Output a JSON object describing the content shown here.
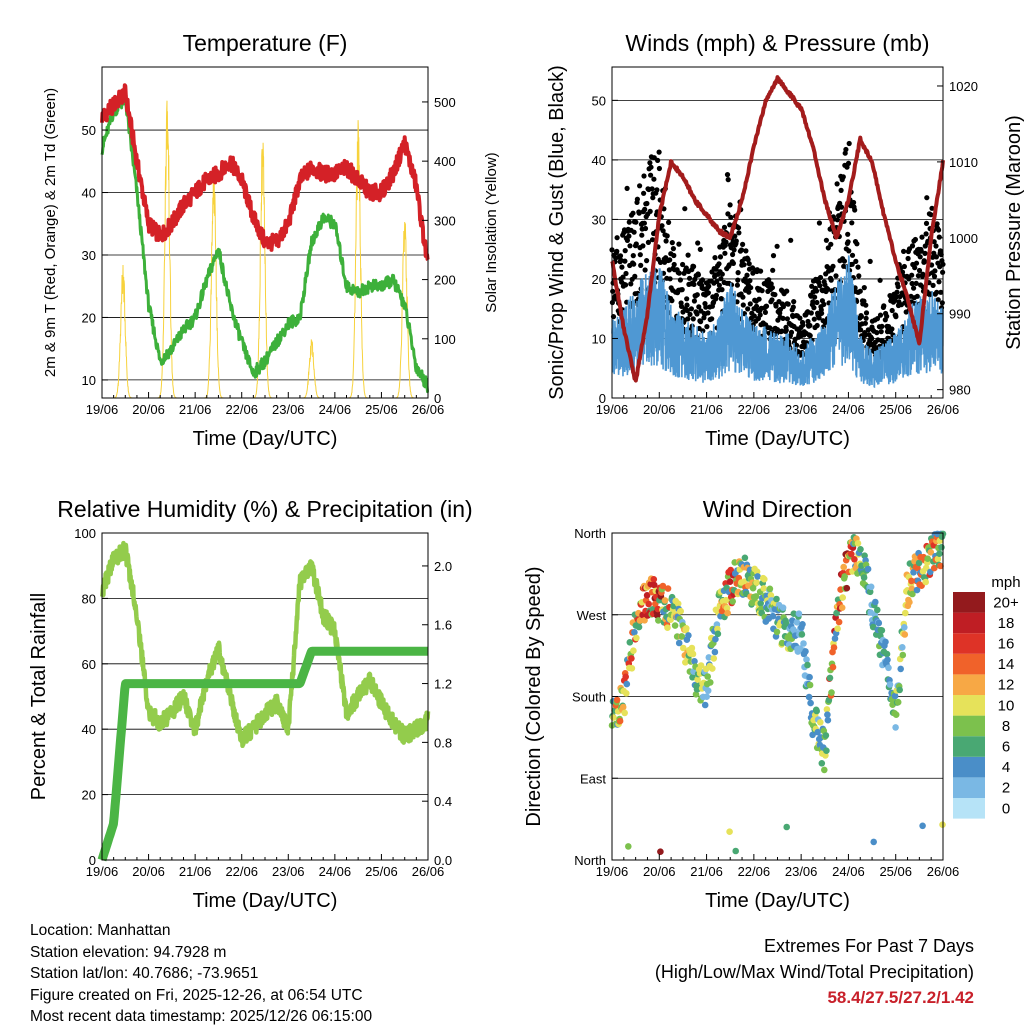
{
  "chart_data": [
    {
      "type": "line",
      "title": "Temperature (F)",
      "xlabel": "Time (Day/UTC)",
      "ylabel": "2m & 9m T (Red, Orange) & 2m Td (Green)",
      "ylabel_right": "Solar Insolation (Yellow)",
      "x_ticks": [
        "19/06",
        "20/06",
        "21/06",
        "22/06",
        "23/06",
        "24/06",
        "25/06",
        "26/06"
      ],
      "y_ticks": [
        10,
        20,
        30,
        40,
        50
      ],
      "y_ticks_right": [
        0,
        100,
        200,
        300,
        400,
        500
      ],
      "ylim": [
        7.1,
        60.1
      ],
      "ylim_right": [
        0,
        559
      ],
      "grid": true,
      "x_step_days": 0.25,
      "series": [
        {
          "name": "2m T",
          "color": "#d42127",
          "axis": "left",
          "values": [
            52,
            54,
            56,
            45,
            35,
            33,
            35,
            38,
            40,
            42,
            43,
            45,
            42,
            36,
            32,
            32,
            35,
            42,
            44,
            43,
            43,
            44,
            42,
            40,
            40,
            43,
            48,
            41,
            28
          ]
        },
        {
          "name": "2m Td",
          "color": "#3db03a",
          "axis": "left",
          "values": [
            47,
            53,
            55,
            40,
            22,
            13,
            15,
            18,
            20,
            26,
            31,
            22,
            16,
            11,
            13,
            16,
            19,
            20,
            32,
            36,
            35,
            25,
            24,
            25,
            25,
            26,
            22,
            12,
            9
          ]
        },
        {
          "name": "Solar Insolation",
          "color": "#f7d23c",
          "axis": "right",
          "peaks_day": [
            0.45,
            1.4,
            2.4,
            3.45,
            4.5,
            5.5,
            6.5
          ],
          "peaks_value": [
            230,
            530,
            410,
            460,
            100,
            470,
            320
          ]
        }
      ]
    },
    {
      "type": "scatter",
      "title": "Winds (mph) & Pressure (mb)",
      "xlabel": "Time (Day/UTC)",
      "ylabel": "Sonic/Prop Wind & Gust (Blue, Black)",
      "ylabel_right": "Station Pressure (Maroon)",
      "x_ticks": [
        "19/06",
        "20/06",
        "21/06",
        "22/06",
        "23/06",
        "24/06",
        "25/06",
        "26/06"
      ],
      "y_ticks": [
        0,
        10,
        20,
        30,
        40,
        50
      ],
      "y_ticks_right": [
        980,
        990,
        1000,
        1010,
        1020
      ],
      "ylim": [
        0,
        55.6
      ],
      "ylim_right": [
        978.9,
        1022.5
      ],
      "grid": true,
      "x_step_days": 0.25,
      "series": [
        {
          "name": "Gust",
          "color": "#000000",
          "axis": "left",
          "values": [
            20,
            22,
            25,
            30,
            32,
            20,
            18,
            17,
            15,
            18,
            27,
            20,
            17,
            16,
            14,
            14,
            10,
            15,
            18,
            28,
            35,
            15,
            10,
            12,
            15,
            20,
            22,
            25,
            20
          ]
        },
        {
          "name": "Wind",
          "color": "#4f98d3",
          "axis": "left",
          "values": [
            9,
            10,
            12,
            14,
            15,
            10,
            9,
            8,
            7,
            9,
            13,
            10,
            8,
            8,
            7,
            7,
            5,
            7,
            9,
            13,
            16,
            7,
            5,
            6,
            7,
            10,
            11,
            12,
            10
          ]
        },
        {
          "name": "Pressure",
          "color": "#a31c1c",
          "axis": "right",
          "values": [
            997,
            988,
            981,
            990,
            1003,
            1010,
            1008,
            1005,
            1003,
            1001,
            1000,
            1005,
            1012,
            1018,
            1021,
            1019,
            1017,
            1012,
            1005,
            1000,
            1005,
            1013,
            1010,
            1003,
            997,
            992,
            986,
            1000,
            1010
          ]
        }
      ]
    },
    {
      "type": "line",
      "title": "Relative Humidity (%) & Precipitation (in)",
      "xlabel": "Time (Day/UTC)",
      "ylabel": "Percent & Total Rainfall",
      "x_ticks": [
        "19/06",
        "20/06",
        "21/06",
        "22/06",
        "23/06",
        "24/06",
        "25/06",
        "26/06"
      ],
      "y_ticks": [
        0,
        20,
        40,
        60,
        80,
        100
      ],
      "y_ticks_right": [
        "0.0",
        "0.4",
        "0.8",
        "1.2",
        "1.6",
        "2.0"
      ],
      "ylim": [
        0,
        100
      ],
      "ylim_right": [
        0,
        2.224
      ],
      "grid": true,
      "x_step_days": 0.25,
      "series": [
        {
          "name": "Relative Humidity",
          "color": "#93cc4c",
          "axis": "left",
          "values": [
            82,
            92,
            95,
            75,
            45,
            42,
            45,
            50,
            40,
            55,
            65,
            50,
            37,
            40,
            45,
            48,
            40,
            85,
            90,
            75,
            70,
            45,
            50,
            55,
            48,
            42,
            38,
            40,
            43
          ]
        },
        {
          "name": "Total Precipitation",
          "color": "#4bb545",
          "axis": "right",
          "values": [
            0,
            0.25,
            1.2,
            1.2,
            1.2,
            1.2,
            1.2,
            1.2,
            1.2,
            1.2,
            1.2,
            1.2,
            1.2,
            1.2,
            1.2,
            1.2,
            1.2,
            1.2,
            1.42,
            1.42,
            1.42,
            1.42,
            1.42,
            1.42,
            1.42,
            1.42,
            1.42,
            1.42,
            1.42
          ]
        }
      ]
    },
    {
      "type": "scatter",
      "title": "Wind Direction",
      "xlabel": "Time (Day/UTC)",
      "ylabel": "Direction (Colored By Speed)",
      "x_ticks": [
        "19/06",
        "20/06",
        "21/06",
        "22/06",
        "23/06",
        "24/06",
        "25/06",
        "26/06"
      ],
      "y_ticks": [
        "North",
        "East",
        "South",
        "West",
        "North"
      ],
      "y_tick_values": [
        0,
        90,
        180,
        270,
        360
      ],
      "ylim": [
        0,
        360
      ],
      "grid": true,
      "x_step_days": 0.25,
      "series": [
        {
          "name": "Direction",
          "values": [
            155,
            175,
            260,
            290,
            285,
            275,
            250,
            200,
            190,
            270,
            300,
            315,
            300,
            285,
            265,
            250,
            250,
            155,
            120,
            270,
            330,
            340,
            280,
            230,
            160,
            300,
            320,
            335,
            345
          ]
        }
      ],
      "colorbar": {
        "title": "mph",
        "labels": [
          "0",
          "2",
          "4",
          "6",
          "8",
          "10",
          "12",
          "14",
          "16",
          "18",
          "20+"
        ],
        "colors": [
          "#b6e3f7",
          "#7ab8e4",
          "#4a8ec8",
          "#49a873",
          "#7cc14d",
          "#e6e25a",
          "#f7a845",
          "#f0622a",
          "#de3327",
          "#bf1e24",
          "#931a1d"
        ]
      }
    }
  ],
  "info": {
    "location": "Location: Manhattan",
    "elevation": "Station elevation: 94.7928 m",
    "latlon": "Station lat/lon: 40.7686; -73.9651",
    "created": "Figure created on Fri, 2025-12-26, at 06:54 UTC",
    "recent": "Most recent data timestamp: 2025/12/26 06:15:00"
  },
  "extremes": {
    "title": "Extremes For Past 7 Days",
    "subtitle": "(High/Low/Max Wind/Total Precipitation)",
    "values": "58.4/27.5/27.2/1.42"
  }
}
